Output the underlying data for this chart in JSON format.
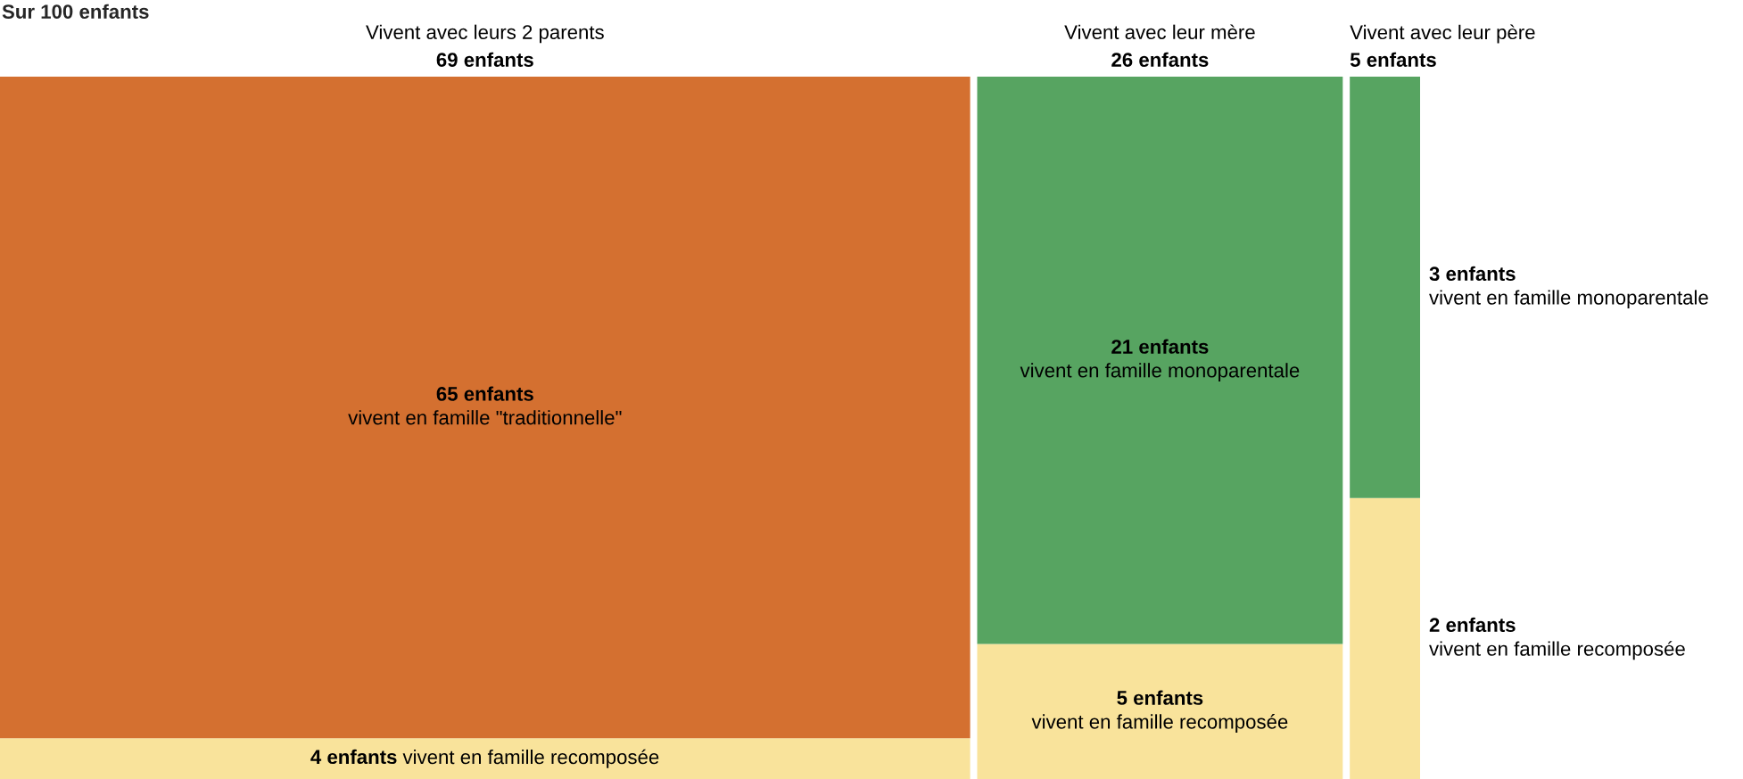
{
  "chart_data": {
    "type": "other",
    "title": "Sur 100 enfants",
    "categories": [
      "Vivent avec leurs 2 parents",
      "Vivent avec leur mère",
      "Vivent avec leur père"
    ],
    "values": [
      69,
      26,
      5
    ],
    "value_labels": [
      "69 enfants",
      "26 enfants",
      "5 enfants"
    ],
    "series": [
      {
        "name": "vivent en famille recomposée",
        "color": "#f9e39b",
        "values": [
          4,
          5,
          2
        ],
        "value_labels": [
          "4 enfants",
          "5 enfants",
          "2 enfants"
        ]
      },
      {
        "name": "vivent en famille \"traditionnelle\"",
        "color": "#d47030",
        "values": [
          65,
          null,
          null
        ],
        "value_labels": [
          "65 enfants",
          null,
          null
        ]
      },
      {
        "name": "vivent en famille monoparentale",
        "color": "#57a461",
        "values": [
          null,
          21,
          3
        ],
        "value_labels": [
          null,
          "21 enfants",
          "3 enfants"
        ]
      }
    ]
  }
}
